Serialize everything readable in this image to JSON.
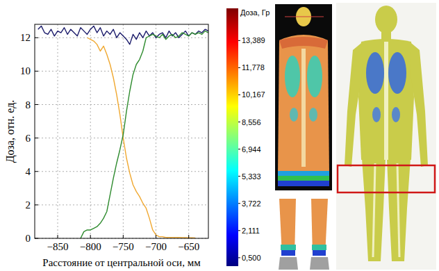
{
  "chart_data": {
    "type": "line",
    "x_label": "Расстояние от центральной оси, мм",
    "y_label": "Доза, отн. ед.",
    "x": [
      -880,
      -875,
      -870,
      -865,
      -860,
      -855,
      -850,
      -845,
      -840,
      -835,
      -830,
      -825,
      -820,
      -815,
      -810,
      -805,
      -800,
      -795,
      -790,
      -785,
      -780,
      -775,
      -770,
      -765,
      -760,
      -755,
      -750,
      -745,
      -740,
      -735,
      -730,
      -725,
      -720,
      -715,
      -710,
      -705,
      -700,
      -695,
      -690,
      -685,
      -680,
      -675,
      -670,
      -665,
      -660,
      -655,
      -650,
      -645,
      -640,
      -635,
      -630,
      -625,
      -620
    ],
    "series": [
      {
        "color": "#1c1c6b",
        "values": [
          12.5,
          12.7,
          12.3,
          12.2,
          12.5,
          12.1,
          12.4,
          12.3,
          12.6,
          12.2,
          12.5,
          12.3,
          12.1,
          12.6,
          12.4,
          12.2,
          12.5,
          12.7,
          12.3,
          12.6,
          12.1,
          12.4,
          12.2,
          12.5,
          12.0,
          12.3,
          12.1,
          11.9,
          11.6,
          12.2,
          11.9,
          12.3,
          12.0,
          12.4,
          12.1,
          12.3,
          12.0,
          12.2,
          12.3,
          12.0,
          12.4,
          12.1,
          12.3,
          12.0,
          12.2,
          12.4,
          12.1,
          12.3,
          12.2,
          12.4,
          12.3,
          12.5,
          12.4
        ]
      },
      {
        "color": "#f0a830",
        "values": [
          null,
          null,
          null,
          null,
          null,
          null,
          null,
          null,
          null,
          null,
          null,
          null,
          null,
          null,
          null,
          12.0,
          11.9,
          11.8,
          11.6,
          11.2,
          11.5,
          11.0,
          10.4,
          9.6,
          8.6,
          7.4,
          6.0,
          4.8,
          3.9,
          3.2,
          2.8,
          2.5,
          2.1,
          1.8,
          1.2,
          0.5,
          0.2,
          0.1,
          0.1,
          0.05,
          0.05,
          0.05,
          0.05,
          0.05,
          0.04,
          0.04,
          0.03,
          0.03,
          0.02,
          null,
          null,
          null,
          null
        ]
      },
      {
        "color": "#2e8b2e",
        "values": [
          null,
          null,
          null,
          null,
          null,
          null,
          null,
          null,
          null,
          null,
          null,
          null,
          null,
          0,
          0.4,
          0.5,
          0.5,
          0.6,
          0.7,
          0.9,
          1.2,
          1.6,
          2.6,
          3.6,
          4.5,
          5.3,
          6.2,
          7.6,
          8.8,
          9.8,
          10.4,
          10.7,
          11.2,
          12.0,
          12.1,
          12.2,
          12.1,
          12.0,
          12.2,
          11.9,
          12.1,
          12.2,
          12.0,
          12.1,
          12.3,
          12.2,
          12.1,
          12.3,
          12.2,
          12.3,
          12.2,
          12.4,
          12.3
        ]
      }
    ],
    "xlim": [
      -885,
      -620
    ],
    "ylim": [
      0,
      12.8
    ],
    "xticks": [
      {
        "value": -850,
        "label": "−850"
      },
      {
        "value": -800,
        "label": "−800"
      },
      {
        "value": -750,
        "label": "−750"
      },
      {
        "value": -700,
        "label": "−700"
      },
      {
        "value": -650,
        "label": "−650"
      }
    ],
    "yticks": [
      0,
      2,
      4,
      6,
      8,
      10,
      12
    ],
    "grid": true
  },
  "dose_map": {
    "colorbar_title": "Доза, Гр",
    "colorbar_range": [
      0,
      15.3
    ],
    "colorbar_ticks": [
      {
        "value": 13.389,
        "label": "13,389"
      },
      {
        "value": 11.778,
        "label": "11,778"
      },
      {
        "value": 10.167,
        "label": "10,167"
      },
      {
        "value": 8.556,
        "label": "8,556"
      },
      {
        "value": 6.944,
        "label": "6,944"
      },
      {
        "value": 5.333,
        "label": "5,333"
      },
      {
        "value": 3.722,
        "label": "3,722"
      },
      {
        "value": 2.111,
        "label": "2,111"
      },
      {
        "value": 0.5,
        "label": "0,500"
      }
    ]
  }
}
